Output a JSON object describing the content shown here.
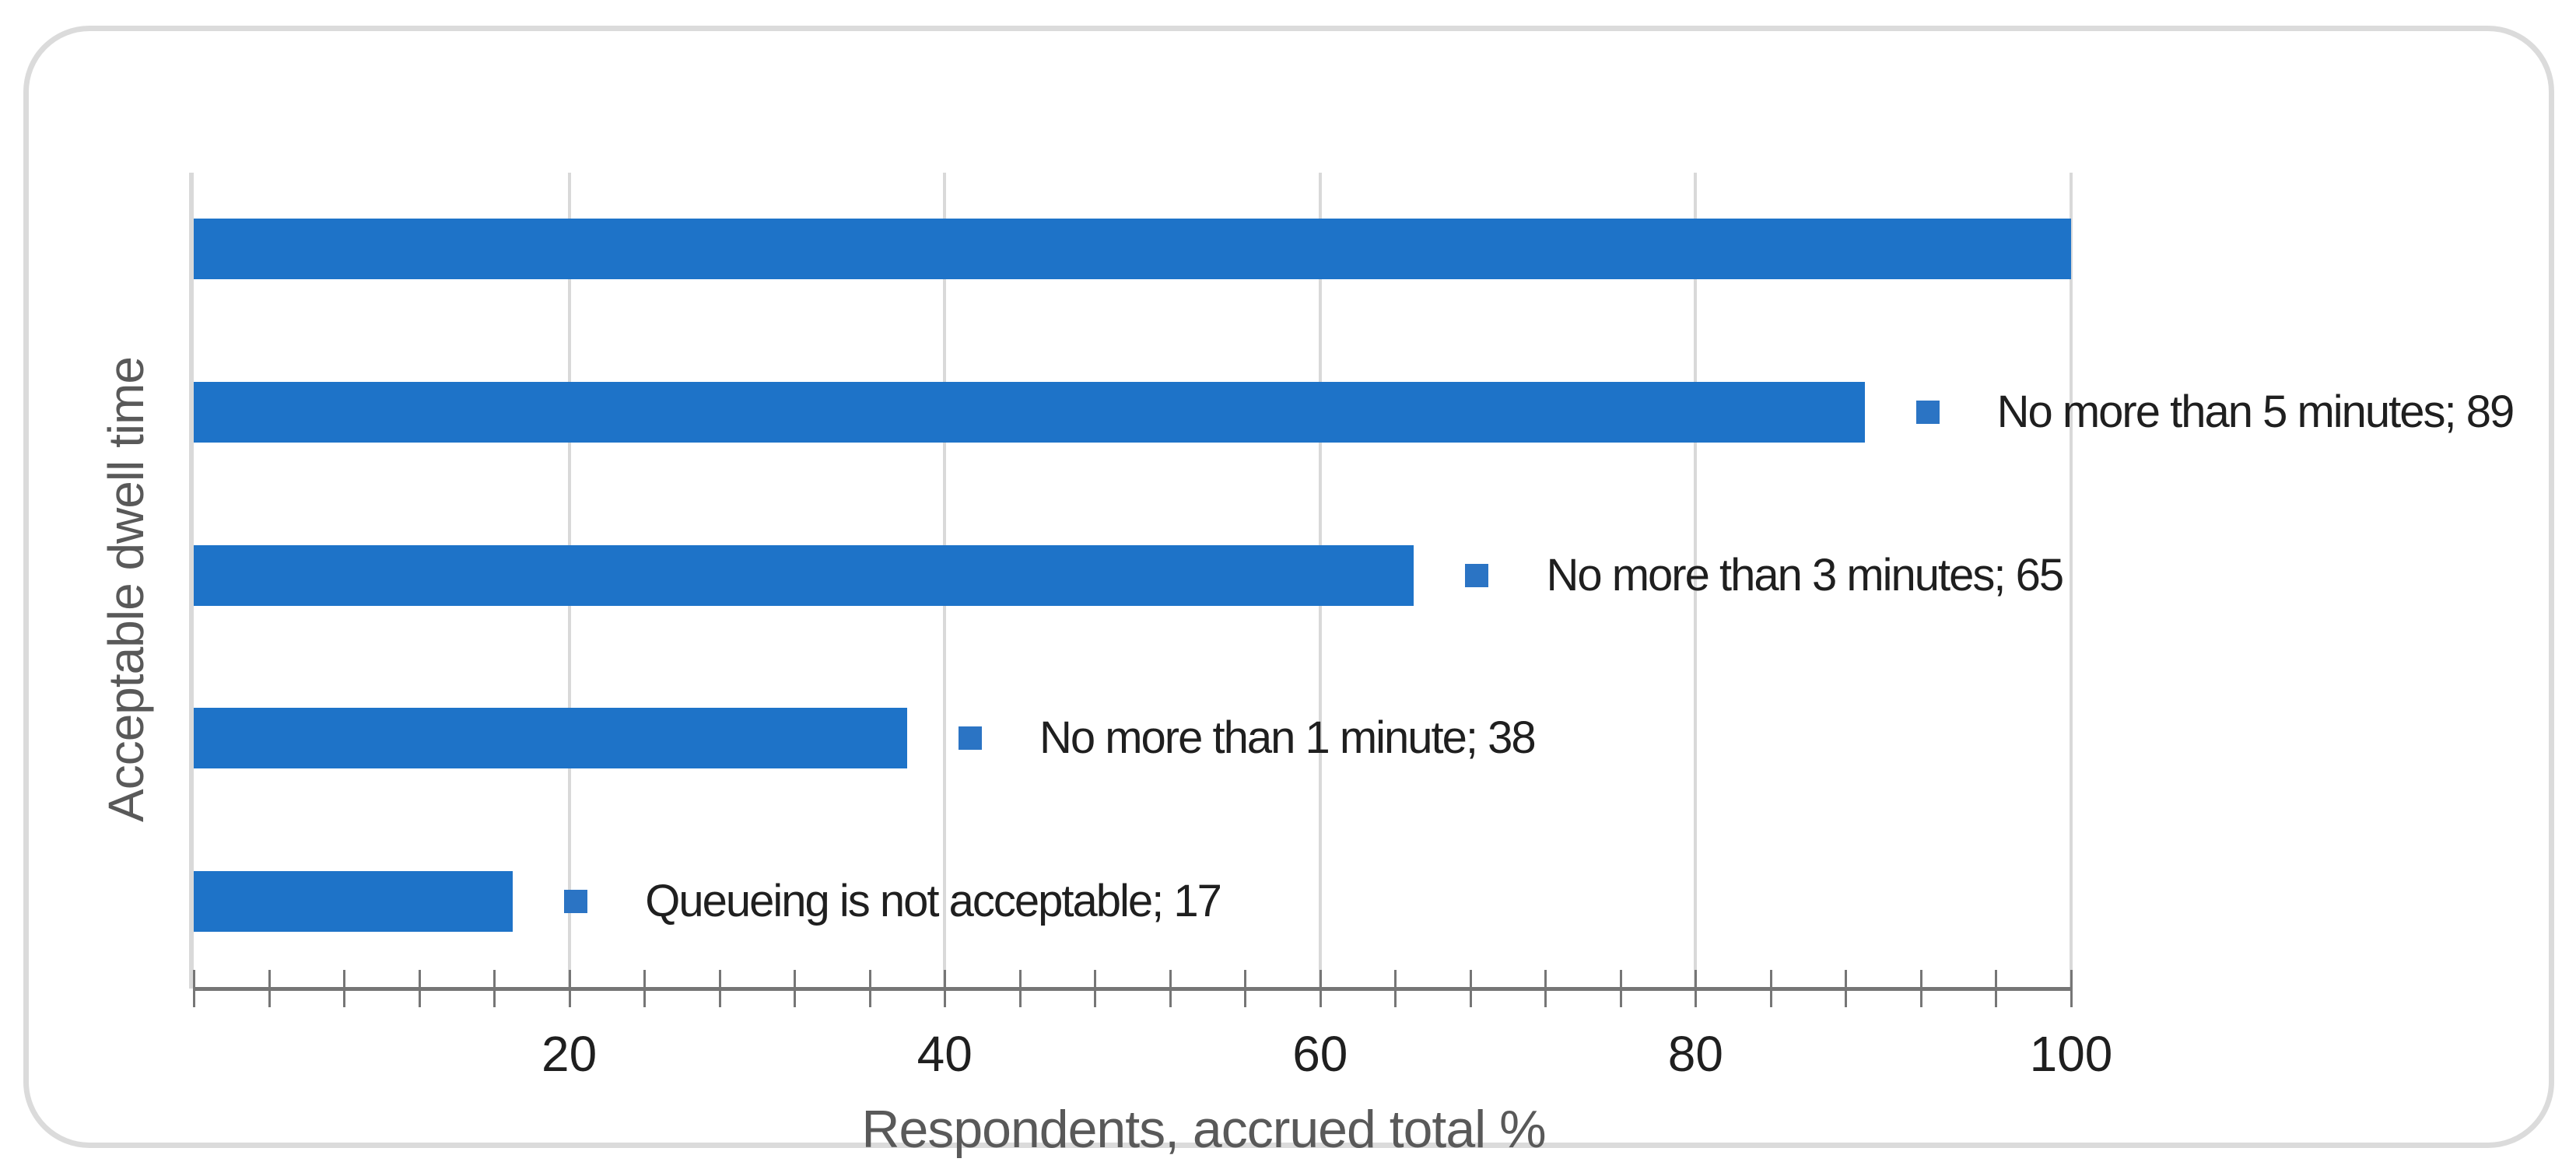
{
  "chart_data": {
    "type": "bar",
    "orientation": "horizontal",
    "xlabel": "Respondents, accrued total %",
    "ylabel": "Acceptable dwell time",
    "xlim": [
      0,
      100
    ],
    "x_ticks": [
      20,
      40,
      60,
      80,
      100
    ],
    "minor_tick_unit": 4,
    "grid": "vertical-major-gridlines",
    "legend": "none",
    "bars": [
      {
        "value": 100,
        "data_label": ""
      },
      {
        "value": 89,
        "data_label": "No more than 5 minutes; 89"
      },
      {
        "value": 65,
        "data_label": "No more than 3 minutes; 65"
      },
      {
        "value": 38,
        "data_label": "No more than 1 minute; 38"
      },
      {
        "value": 17,
        "data_label": "Queueing is not acceptable; 17"
      }
    ],
    "colors": {
      "bar": "#1e73c8",
      "legend_key": "#2b74c4",
      "gridline": "#d9d9d9",
      "axis_line": "#767676",
      "tick_label_text": "#1f1f1f",
      "axis_title_text": "#595959",
      "card_border": "#dbdbdb"
    }
  }
}
